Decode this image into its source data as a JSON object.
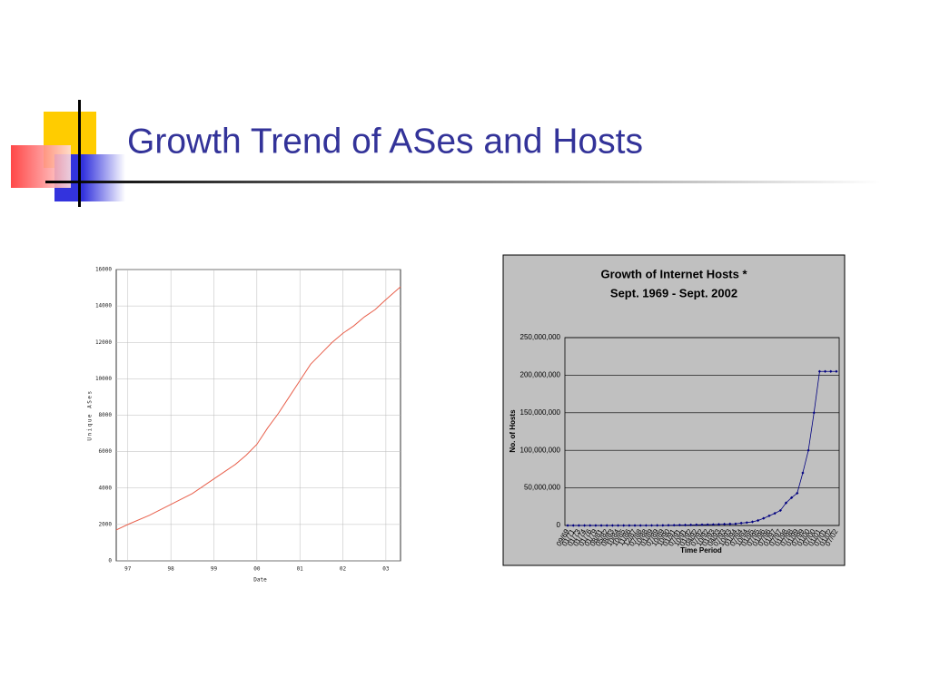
{
  "title": "Growth Trend of  ASes and Hosts",
  "chart_data": [
    {
      "type": "line",
      "xlabel": "Date",
      "ylabel": "Unique ASes",
      "x": [
        1996.73,
        1997,
        1997.5,
        1998,
        1998.5,
        1999,
        1999.5,
        1999.75,
        2000,
        2000.25,
        2000.5,
        2000.75,
        2001,
        2001.25,
        2001.5,
        2001.75,
        2002,
        2002.25,
        2002.5,
        2002.75,
        2003,
        2003.34
      ],
      "values": [
        1700,
        2000,
        2500,
        3100,
        3700,
        4500,
        5300,
        5800,
        6400,
        7300,
        8100,
        9000,
        9900,
        10800,
        11400,
        12000,
        12500,
        12900,
        13400,
        13800,
        14350,
        15050
      ],
      "color": "#e8604c",
      "xlim": [
        1996.73,
        2003.34
      ],
      "xticks": [
        {
          "value": 1997,
          "label": "97"
        },
        {
          "value": 1998,
          "label": "98"
        },
        {
          "value": 1999,
          "label": "99"
        },
        {
          "value": 2000,
          "label": "00"
        },
        {
          "value": 2001,
          "label": "01"
        },
        {
          "value": 2002,
          "label": "02"
        },
        {
          "value": 2003,
          "label": "03"
        }
      ],
      "ylim": [
        0,
        16000
      ],
      "yticks": [
        0,
        2000,
        4000,
        6000,
        8000,
        10000,
        12000,
        14000,
        16000
      ],
      "grid": true
    },
    {
      "type": "line",
      "title": "Growth of Internet Hosts *",
      "subtitle": "Sept. 1969 - Sept. 2002",
      "xlabel": "Time Period",
      "ylabel": "No. of Hosts",
      "categories": [
        "09/69",
        "01/71",
        "01/73",
        "01/74",
        "01/76",
        "01/79",
        "08/81",
        "05/82",
        "08/83",
        "10/84",
        "10/85",
        "11/86",
        "12/87",
        "07/88",
        "10/88",
        "01/89",
        "07/89",
        "10/89",
        "10/90",
        "01/91",
        "07/91",
        "10/91",
        "01/92",
        "04/92",
        "07/92",
        "10/92",
        "01/93",
        "04/93",
        "07/93",
        "10/93",
        "01/94",
        "07/94",
        "10/94",
        "01/95",
        "07/95",
        "01/96",
        "07/96",
        "01/97",
        "07/97",
        "01/98",
        "07/98",
        "01/99",
        "07/99",
        "01/00",
        "07/00",
        "01/01",
        "07/01",
        "01/02",
        "07/02"
      ],
      "values": [
        4,
        23,
        35,
        62,
        63,
        188,
        213,
        235,
        562,
        1024,
        1961,
        5089,
        28174,
        33000,
        56000,
        80000,
        130000,
        159000,
        313000,
        376000,
        535000,
        617000,
        727000,
        890000,
        992000,
        1136000,
        1313000,
        1486000,
        1776000,
        2056000,
        2217000,
        3212000,
        3864000,
        4852000,
        6642000,
        9472000,
        12881000,
        16146000,
        20000000,
        30000000,
        37000000,
        43000000,
        70000000,
        100000000,
        150000000,
        205000000,
        205000000,
        205000000,
        205000000
      ],
      "color": "#000080",
      "markers": true,
      "ylim": [
        0,
        250000000
      ],
      "yticks": [
        0,
        {
          "value": 50000000,
          "label": "50,000,000"
        },
        {
          "value": 100000000,
          "label": "100,000,000"
        },
        {
          "value": 150000000,
          "label": "150,000,000"
        },
        {
          "value": 200000000,
          "label": "200,000,000"
        },
        {
          "value": 250000000,
          "label": "250,000,000"
        }
      ],
      "grid": true
    }
  ]
}
